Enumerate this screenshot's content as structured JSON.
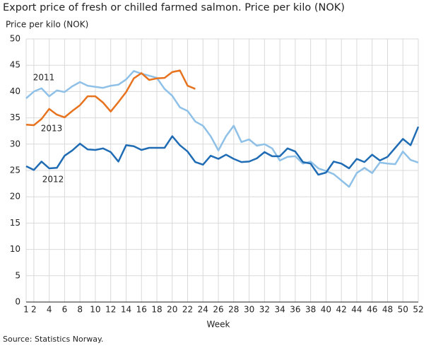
{
  "chart_data": {
    "type": "line",
    "title": "Export price of fresh or chilled farmed salmon. Price per kilo (NOK)",
    "y_label": "Price per kilo (NOK)",
    "x_label": "Week",
    "source": "Source: Statistics Norway.",
    "x": [
      1,
      2,
      3,
      4,
      5,
      6,
      7,
      8,
      9,
      10,
      11,
      12,
      13,
      14,
      15,
      16,
      17,
      18,
      19,
      20,
      21,
      22,
      23,
      24,
      25,
      26,
      27,
      28,
      29,
      30,
      31,
      32,
      33,
      34,
      35,
      36,
      37,
      38,
      39,
      40,
      41,
      42,
      43,
      44,
      45,
      46,
      47,
      48,
      49,
      50,
      51,
      52
    ],
    "xlim": [
      1,
      52
    ],
    "xticks": [
      1,
      2,
      4,
      6,
      8,
      10,
      12,
      14,
      16,
      18,
      20,
      22,
      24,
      26,
      28,
      30,
      32,
      34,
      36,
      38,
      40,
      42,
      44,
      46,
      48,
      50,
      52
    ],
    "ylim": [
      0,
      50
    ],
    "yticks": [
      0,
      5,
      10,
      15,
      20,
      25,
      30,
      35,
      40,
      45,
      50
    ],
    "grid": true,
    "series": [
      {
        "name": "2011",
        "color": "#8fc1e8",
        "values": [
          38.7,
          40.0,
          40.6,
          39.1,
          40.2,
          39.9,
          41.0,
          41.8,
          41.1,
          40.9,
          40.7,
          41.1,
          41.3,
          42.3,
          43.9,
          43.4,
          43.0,
          42.6,
          40.5,
          39.2,
          37.0,
          36.3,
          34.3,
          33.5,
          31.5,
          28.8,
          31.5,
          33.5,
          30.4,
          30.9,
          29.7,
          30.0,
          29.2,
          26.9,
          27.6,
          27.7,
          26.3,
          26.7,
          25.4,
          24.9,
          24.3,
          23.1,
          21.9,
          24.5,
          25.5,
          24.5,
          26.5,
          26.3,
          26.2,
          28.6,
          27.0,
          26.5
        ]
      },
      {
        "name": "2012",
        "color": "#1f6cb5",
        "values": [
          25.8,
          25.1,
          26.7,
          25.4,
          25.5,
          27.8,
          28.8,
          30.1,
          29.0,
          28.9,
          29.2,
          28.5,
          26.7,
          29.8,
          29.6,
          28.9,
          29.3,
          29.3,
          29.3,
          31.5,
          29.8,
          28.6,
          26.6,
          26.1,
          27.8,
          27.2,
          28.0,
          27.2,
          26.6,
          26.7,
          27.3,
          28.5,
          27.7,
          27.7,
          29.2,
          28.6,
          26.6,
          26.3,
          24.2,
          24.6,
          26.7,
          26.3,
          25.4,
          27.2,
          26.6,
          28.0,
          26.9,
          27.6,
          29.3,
          31.0,
          29.8,
          33.3
        ]
      },
      {
        "name": "2013",
        "color": "#e8731f",
        "values": [
          33.7,
          33.6,
          34.8,
          36.7,
          35.6,
          35.1,
          36.3,
          37.4,
          39.1,
          39.1,
          37.9,
          36.2,
          38.0,
          39.9,
          42.5,
          43.5,
          42.2,
          42.5,
          42.6,
          43.7,
          44.0,
          41.1,
          40.5,
          null,
          null,
          null,
          null,
          null,
          null,
          null,
          null,
          null,
          null,
          null,
          null,
          null,
          null,
          null,
          null,
          null,
          null,
          null,
          null,
          null,
          null,
          null,
          null,
          null,
          null,
          null,
          null,
          null
        ]
      }
    ]
  }
}
